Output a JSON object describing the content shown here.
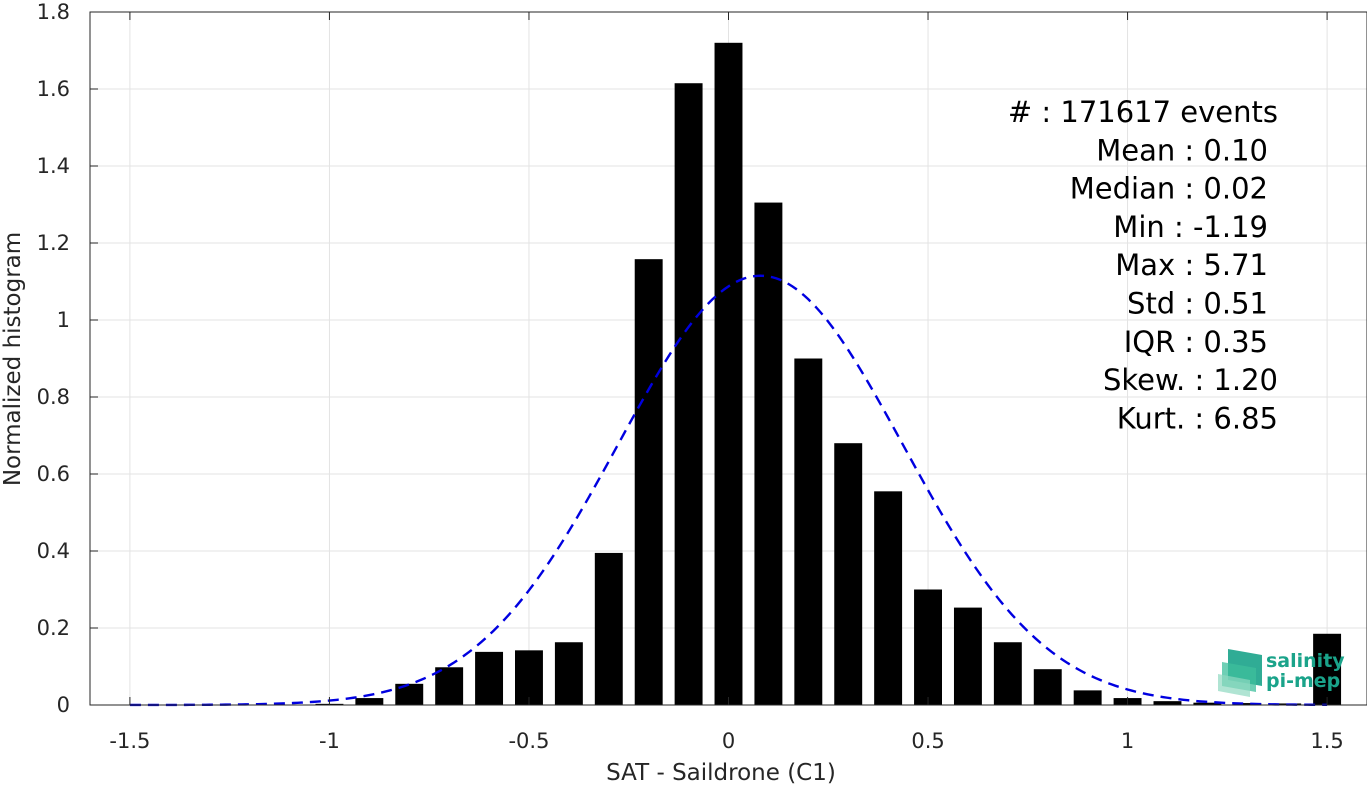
{
  "chart_data": {
    "type": "bar",
    "xlabel": "SAT - Saildrone (C1)",
    "ylabel": "Normalized histogram",
    "xlim": [
      -1.6,
      1.6
    ],
    "ylim": [
      0,
      1.8
    ],
    "xticks": [
      -1.5,
      -1,
      -0.5,
      0,
      0.5,
      1,
      1.5
    ],
    "xtick_labels": [
      "-1.5",
      "-1",
      "-0.5",
      "0",
      "0.5",
      "1",
      "1.5"
    ],
    "yticks": [
      0,
      0.2,
      0.4,
      0.6,
      0.8,
      1,
      1.2,
      1.4,
      1.6,
      1.8
    ],
    "ytick_labels": [
      "0",
      "0.2",
      "0.4",
      "0.6",
      "0.8",
      "1",
      "1.2",
      "1.4",
      "1.6",
      "1.8"
    ],
    "grid": true,
    "bar_color": "#000000",
    "bar_width": 0.07,
    "bars": {
      "x": [
        -1.5,
        -1.4,
        -1.3,
        -1.2,
        -1.1,
        -1.0,
        -0.9,
        -0.8,
        -0.7,
        -0.6,
        -0.5,
        -0.4,
        -0.3,
        -0.2,
        -0.1,
        0.0,
        0.1,
        0.2,
        0.3,
        0.4,
        0.5,
        0.6,
        0.7,
        0.8,
        0.9,
        1.0,
        1.1,
        1.2,
        1.3,
        1.4,
        1.5
      ],
      "y": [
        0,
        0,
        0,
        0,
        0,
        0.003,
        0.018,
        0.055,
        0.098,
        0.138,
        0.142,
        0.163,
        0.395,
        1.158,
        1.615,
        1.72,
        1.305,
        0.9,
        0.68,
        0.555,
        0.3,
        0.253,
        0.163,
        0.093,
        0.038,
        0.018,
        0.01,
        0.006,
        0.005,
        0.004,
        0.185
      ]
    },
    "fit": {
      "name": "Gaussian fit",
      "color": "#0000e0",
      "style": "dashed",
      "mean": 0.08,
      "peak": 1.115,
      "sigma": 0.357
    },
    "stats": [
      {
        "label": "#  ",
        "value": ": 171617 events"
      },
      {
        "label": "Mean ",
        "value": ": 0.10"
      },
      {
        "label": "Median ",
        "value": ": 0.02"
      },
      {
        "label": "Min ",
        "value": ": -1.19"
      },
      {
        "label": "Max ",
        "value": ": 5.71"
      },
      {
        "label": "Std ",
        "value": ": 0.51"
      },
      {
        "label": "IQR ",
        "value": ": 0.35"
      },
      {
        "label": "Skew. ",
        "value": ": 1.20"
      },
      {
        "label": "Kurt. ",
        "value": ": 6.85"
      }
    ],
    "stats_text": [
      "#  : 171617 events",
      "Mean : 0.10",
      "Median : 0.02",
      "Min : -1.19",
      "Max : 5.71",
      "Std : 0.51",
      "IQR : 0.35",
      "Skew. : 1.20",
      "Kurt. : 6.85"
    ]
  },
  "logo": {
    "line1": "salinity",
    "line2": "pi-mep",
    "color": "#1aa38a"
  }
}
